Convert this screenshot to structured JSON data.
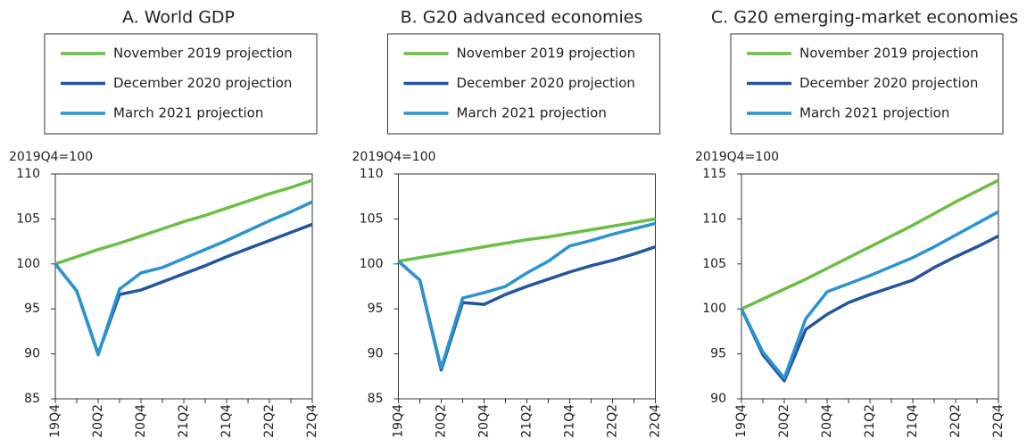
{
  "chart_data": [
    {
      "type": "line",
      "title": "A. World GDP",
      "y_label": "2019Q4=100",
      "categories": [
        "19Q4",
        null,
        "20Q2",
        null,
        "20Q4",
        null,
        "21Q2",
        null,
        "21Q4",
        null,
        "22Q2",
        null,
        "22Q4"
      ],
      "ylim": [
        85,
        110
      ],
      "yticks": [
        85,
        90,
        95,
        100,
        105,
        110
      ],
      "grid": false,
      "series": [
        {
          "name": "November 2019 projection",
          "color": "#6abf45",
          "values": [
            100,
            100.8,
            101.6,
            102.3,
            103.1,
            103.9,
            104.7,
            105.4,
            106.2,
            107.0,
            107.8,
            108.5,
            109.3
          ]
        },
        {
          "name": "December 2020 projection",
          "color": "#22559e",
          "values": [
            100,
            97,
            90,
            96.6,
            97.1,
            98.0,
            98.9,
            99.8,
            100.8,
            101.7,
            102.6,
            103.5,
            104.4
          ]
        },
        {
          "name": "March 2021 projection",
          "color": "#2a93d0",
          "values": [
            100,
            97,
            89.9,
            97.2,
            99.0,
            99.6,
            100.6,
            101.6,
            102.6,
            103.7,
            104.8,
            105.8,
            106.9
          ]
        }
      ]
    },
    {
      "type": "line",
      "title": "B. G20 advanced economies",
      "y_label": "2019Q4=100",
      "categories": [
        "19Q4",
        null,
        "20Q2",
        null,
        "20Q4",
        null,
        "21Q2",
        null,
        "21Q4",
        null,
        "22Q2",
        null,
        "22Q4"
      ],
      "ylim": [
        85,
        110
      ],
      "yticks": [
        85,
        90,
        95,
        100,
        105,
        110
      ],
      "grid": false,
      "series": [
        {
          "name": "November 2019 projection",
          "color": "#6abf45",
          "values": [
            100.3,
            100.7,
            101.1,
            101.5,
            101.9,
            102.3,
            102.7,
            103.0,
            103.4,
            103.8,
            104.2,
            104.6,
            105.0
          ]
        },
        {
          "name": "December 2020 projection",
          "color": "#22559e",
          "values": [
            100.3,
            98.2,
            88.2,
            95.7,
            95.5,
            96.6,
            97.5,
            98.3,
            99.1,
            99.8,
            100.4,
            101.1,
            101.9
          ]
        },
        {
          "name": "March 2021 projection",
          "color": "#2a93d0",
          "values": [
            100.3,
            98.2,
            88.4,
            96.2,
            96.8,
            97.5,
            99.0,
            100.3,
            102.0,
            102.6,
            103.3,
            103.9,
            104.5
          ]
        }
      ]
    },
    {
      "type": "line",
      "title": "C. G20 emerging-market economies",
      "y_label": "2019Q4=100",
      "categories": [
        "19Q4",
        null,
        "20Q2",
        null,
        "20Q4",
        null,
        "21Q2",
        null,
        "21Q4",
        null,
        "22Q2",
        null,
        "22Q4"
      ],
      "ylim": [
        90,
        115
      ],
      "yticks": [
        90,
        95,
        100,
        105,
        110,
        115
      ],
      "grid": false,
      "series": [
        {
          "name": "November 2019 projection",
          "color": "#6abf45",
          "values": [
            100,
            101.1,
            102.2,
            103.3,
            104.5,
            105.7,
            106.9,
            108.1,
            109.3,
            110.6,
            111.9,
            113.1,
            114.3
          ]
        },
        {
          "name": "December 2020 projection",
          "color": "#22559e",
          "values": [
            100,
            94.9,
            92.0,
            97.7,
            99.4,
            100.7,
            101.6,
            102.4,
            103.2,
            104.6,
            105.8,
            106.9,
            108.1
          ]
        },
        {
          "name": "March 2021 projection",
          "color": "#2a93d0",
          "values": [
            100,
            95.2,
            92.3,
            98.9,
            101.9,
            102.8,
            103.7,
            104.7,
            105.7,
            106.9,
            108.2,
            109.5,
            110.8
          ]
        }
      ]
    }
  ]
}
